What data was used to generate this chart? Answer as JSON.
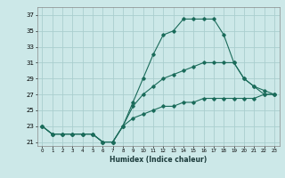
{
  "xlabel": "Humidex (Indice chaleur)",
  "bg_color": "#cce8e8",
  "grid_color": "#aacece",
  "line_color": "#1a6b5a",
  "xlim": [
    -0.5,
    23.5
  ],
  "ylim": [
    20.5,
    38
  ],
  "xticks": [
    0,
    1,
    2,
    3,
    4,
    5,
    6,
    7,
    8,
    9,
    10,
    11,
    12,
    13,
    14,
    15,
    16,
    17,
    18,
    19,
    20,
    21,
    22,
    23
  ],
  "yticks": [
    21,
    23,
    25,
    27,
    29,
    31,
    33,
    35,
    37
  ],
  "line1_x": [
    0,
    1,
    2,
    3,
    4,
    5,
    6,
    7,
    8,
    9,
    10,
    11,
    12,
    13,
    14,
    15,
    16,
    17,
    18,
    19,
    20,
    21,
    22,
    23
  ],
  "line1_y": [
    23,
    22,
    22,
    22,
    22,
    22,
    21,
    21,
    23,
    26,
    29,
    32,
    34.5,
    35,
    36.5,
    36.5,
    36.5,
    36.5,
    34.5,
    31,
    29,
    28,
    27,
    27
  ],
  "line2_x": [
    0,
    1,
    2,
    3,
    4,
    5,
    6,
    7,
    8,
    9,
    10,
    11,
    12,
    13,
    14,
    15,
    16,
    17,
    18,
    19,
    20,
    21,
    22,
    23
  ],
  "line2_y": [
    23,
    22,
    22,
    22,
    22,
    22,
    21,
    21,
    23,
    25.5,
    27,
    28,
    29,
    29.5,
    30,
    30.5,
    31,
    31,
    31,
    31,
    29,
    28,
    27.5,
    27
  ],
  "line3_x": [
    0,
    1,
    2,
    3,
    4,
    5,
    6,
    7,
    8,
    9,
    10,
    11,
    12,
    13,
    14,
    15,
    16,
    17,
    18,
    19,
    20,
    21,
    22,
    23
  ],
  "line3_y": [
    23,
    22,
    22,
    22,
    22,
    22,
    21,
    21,
    23,
    24,
    24.5,
    25,
    25.5,
    25.5,
    26,
    26,
    26.5,
    26.5,
    26.5,
    26.5,
    26.5,
    26.5,
    27,
    27
  ]
}
